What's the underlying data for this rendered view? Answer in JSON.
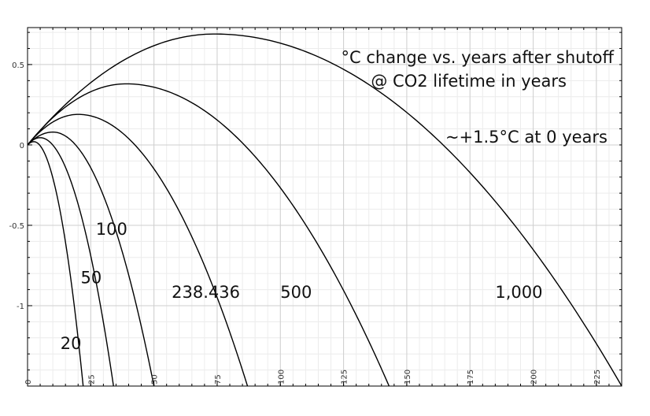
{
  "chart_data": {
    "type": "line",
    "title": "",
    "xlabel": "",
    "ylabel": "",
    "xlim": [
      0,
      235
    ],
    "ylim": [
      -1.5,
      0.73
    ],
    "x_ticks": [
      0,
      25,
      50,
      75,
      100,
      125,
      150,
      175,
      200,
      225
    ],
    "x_tick_labels": [
      "0",
      "25",
      "50",
      "75",
      "100",
      "125",
      "150",
      "175",
      "200",
      "225"
    ],
    "y_ticks": [
      0.5,
      0,
      -0.5,
      -1
    ],
    "y_tick_labels": [
      "0.5",
      "0",
      "-0.5",
      "-1"
    ],
    "grid": true,
    "annotations": [
      "°C change vs. years after shutoff",
      "@ CO2 lifetime in years",
      "~+1.5°C at 0 years"
    ],
    "series": [
      {
        "name": "20",
        "peak_x": 2.5,
        "peak_y": 0.02,
        "end_x": 22
      },
      {
        "name": "50",
        "peak_x": 5,
        "peak_y": 0.045,
        "end_x": 34
      },
      {
        "name": "100",
        "peak_x": 10,
        "peak_y": 0.08,
        "end_x": 50
      },
      {
        "name": "238.436",
        "peak_x": 20,
        "peak_y": 0.19,
        "end_x": 87
      },
      {
        "name": "500",
        "peak_x": 39,
        "peak_y": 0.38,
        "end_x": 143
      },
      {
        "name": "1,000",
        "peak_x": 74,
        "peak_y": 0.69,
        "end_x": 235
      }
    ]
  }
}
